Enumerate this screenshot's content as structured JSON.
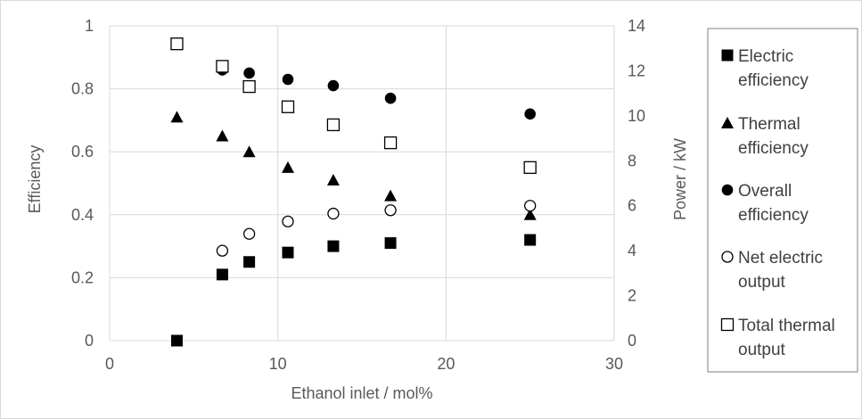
{
  "chart_data": {
    "type": "scatter",
    "title": "",
    "xlabel": "Ethanol inlet / mol%",
    "ylabel": "Efficiency",
    "y2label": "Power / kW",
    "xlim": [
      0,
      30
    ],
    "ylim": [
      0,
      1
    ],
    "y2lim": [
      0,
      14
    ],
    "xticks": [
      "0",
      "10",
      "20",
      "30"
    ],
    "yticks": [
      "0",
      "0.2",
      "0.4",
      "0.6",
      "0.8",
      "1"
    ],
    "y2ticks": [
      "0",
      "2",
      "4",
      "6",
      "8",
      "10",
      "12",
      "14"
    ],
    "grid": true,
    "legend_position": "right",
    "series": [
      {
        "name": "Electric efficiency",
        "legend_lines": [
          "Electric",
          "efficiency"
        ],
        "axis": "left",
        "marker": "filled-square",
        "x": [
          4,
          6.7,
          8.3,
          10.6,
          13.3,
          16.7,
          25
        ],
        "y": [
          0.0,
          0.21,
          0.25,
          0.28,
          0.3,
          0.31,
          0.32
        ]
      },
      {
        "name": "Thermal efficiency",
        "legend_lines": [
          "Thermal",
          "efficiency"
        ],
        "axis": "left",
        "marker": "filled-triangle",
        "x": [
          4,
          6.7,
          8.3,
          10.6,
          13.3,
          16.7,
          25
        ],
        "y": [
          0.71,
          0.65,
          0.6,
          0.55,
          0.51,
          0.46,
          0.4
        ]
      },
      {
        "name": "Overall efficiency",
        "legend_lines": [
          "Overall",
          "efficiency"
        ],
        "axis": "left",
        "marker": "filled-circle",
        "x": [
          6.7,
          8.3,
          10.6,
          13.3,
          16.7,
          25
        ],
        "y": [
          0.86,
          0.85,
          0.83,
          0.81,
          0.77,
          0.72
        ]
      },
      {
        "name": "Net electric output",
        "legend_lines": [
          "Net electric",
          "output"
        ],
        "axis": "right",
        "marker": "open-circle",
        "x": [
          6.7,
          8.3,
          10.6,
          13.3,
          16.7,
          25
        ],
        "y": [
          4.0,
          4.75,
          5.3,
          5.65,
          5.8,
          6.0
        ]
      },
      {
        "name": "Total thermal output",
        "legend_lines": [
          "Total thermal",
          "output"
        ],
        "axis": "right",
        "marker": "open-square",
        "x": [
          4,
          6.7,
          8.3,
          10.6,
          13.3,
          16.7,
          25
        ],
        "y": [
          13.2,
          12.2,
          11.3,
          10.4,
          9.6,
          8.8,
          7.7
        ]
      }
    ]
  },
  "colors": {
    "marker": "#000000",
    "grid": "#d9d9d9",
    "tick_text": "#595959",
    "legend_text": "#404040"
  }
}
